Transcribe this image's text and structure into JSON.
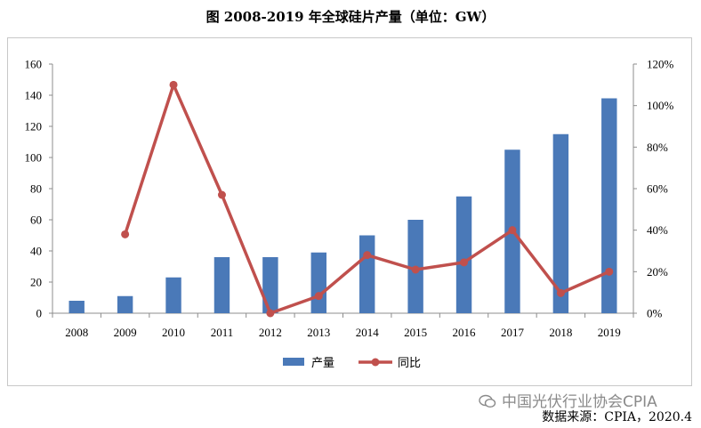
{
  "title": "图  2008-2019 年全球硅片产量（单位：GW）",
  "watermark": "中国光伏行业协会CPIA",
  "source": "数据来源：CPIA，2020.4",
  "colors": {
    "bar": "#4a79b8",
    "line": "#c0504d"
  },
  "chart_data": {
    "type": "bar",
    "categories": [
      "2008",
      "2009",
      "2010",
      "2011",
      "2012",
      "2013",
      "2014",
      "2015",
      "2016",
      "2017",
      "2018",
      "2019"
    ],
    "series": [
      {
        "name": "产量",
        "type": "bar",
        "axis": "left",
        "values": [
          8,
          11,
          23,
          36,
          36,
          39,
          50,
          60,
          75,
          105,
          115,
          138
        ]
      },
      {
        "name": "同比",
        "type": "line",
        "axis": "right",
        "values": [
          null,
          0.38,
          1.1,
          0.57,
          0.0,
          0.083,
          0.28,
          0.21,
          0.245,
          0.4,
          0.097,
          0.2
        ]
      }
    ],
    "y_left": {
      "min": 0,
      "max": 160,
      "ticks": [
        "0",
        "20",
        "40",
        "60",
        "80",
        "100",
        "120",
        "140",
        "160"
      ]
    },
    "y_right": {
      "min": 0,
      "max": 1.2,
      "ticks": [
        "0%",
        "20%",
        "40%",
        "60%",
        "80%",
        "100%",
        "120%"
      ]
    },
    "legend_position": "bottom",
    "grid": false
  }
}
